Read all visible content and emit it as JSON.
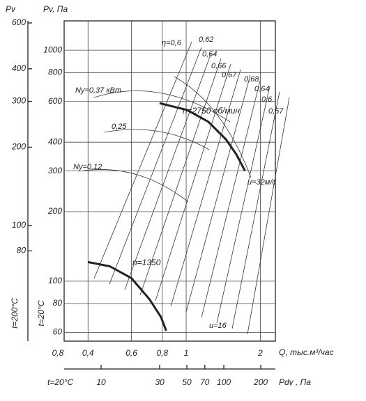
{
  "chart_data": {
    "type": "line",
    "y_label": "Pv, Па",
    "y2_label": "Pv",
    "x_label": "Q, тыс.м³/час",
    "x2_label": "Pdv , Па",
    "y_note": "t=20°C",
    "y2_note": "t=200°C",
    "x2_note": "t=20°C",
    "x_axis_start_label": "0,8",
    "xscale": "log",
    "yscale": "log",
    "grid": true,
    "xlim": [
      0.32,
      2.3
    ],
    "ylim": [
      55,
      1340
    ],
    "y2lim": [
      36,
      611
    ],
    "x2lim": [
      5,
      263
    ],
    "xticks": [
      {
        "value": 0.4,
        "label": "0,4"
      },
      {
        "value": 0.6,
        "label": "0,6"
      },
      {
        "value": 0.8,
        "label": "0,8"
      },
      1,
      2
    ],
    "yticks": [
      60,
      80,
      100,
      200,
      300,
      400,
      600,
      800,
      1000
    ],
    "y2ticks": [
      80,
      100,
      200,
      300,
      400,
      600
    ],
    "x2ticks": [
      10,
      30,
      50,
      70,
      100,
      200
    ],
    "series": [
      {
        "name": "n=2750 об/мин",
        "color": "#222222",
        "x": [
          0.78,
          1.01,
          1.23,
          1.45,
          1.6,
          1.73
        ],
        "values": [
          590,
          551,
          490,
          411,
          353,
          301
        ]
      },
      {
        "name": "n=1350",
        "color": "#222222",
        "x": [
          0.4,
          0.49,
          0.6,
          0.71,
          0.79,
          0.83
        ],
        "values": [
          121,
          116,
          103,
          83.5,
          70,
          61
        ]
      }
    ],
    "annotations": [
      "η=0,6",
      "0,62",
      "0,64",
      "0,66",
      "0,67",
      "0,68",
      "0,64",
      "0,6",
      "0,57",
      "Nу=0,37 кВт",
      "0,25",
      "Nу=0,12",
      "u=32м/с",
      "u=16"
    ]
  }
}
